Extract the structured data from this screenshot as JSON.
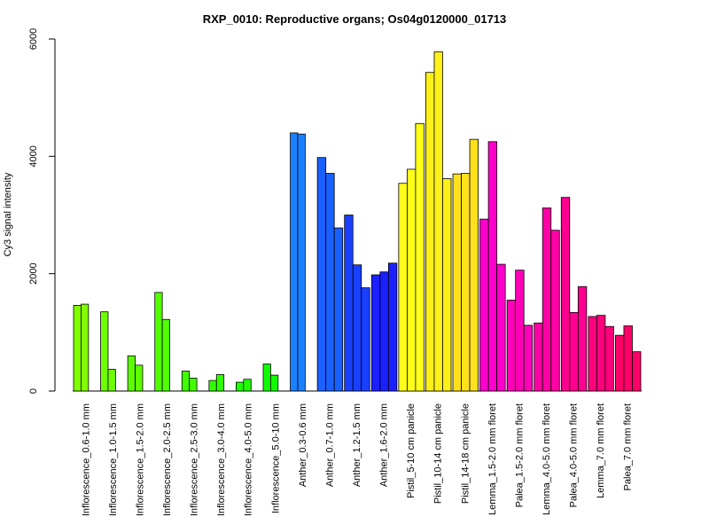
{
  "chart_data": {
    "type": "bar",
    "title": "RXP_0010: Reproductive organs; Os04g0120000_01713",
    "ylabel": "Cy3 signal intensity",
    "xlabel": "",
    "ylim": [
      0,
      6000
    ],
    "yticks": [
      0,
      2000,
      4000,
      6000
    ],
    "groups": [
      {
        "label": "Inflorescence_0.6-1.0 mm",
        "color": "#80FF00",
        "values": [
          1460,
          1480
        ]
      },
      {
        "label": "Inflorescence_1.0-1.5 mm",
        "color": "#70FF00",
        "values": [
          1350,
          370
        ]
      },
      {
        "label": "Inflorescence_1.5-2.0 mm",
        "color": "#60FF00",
        "values": [
          600,
          440
        ]
      },
      {
        "label": "Inflorescence_2.0-2.5 mm",
        "color": "#50FF00",
        "values": [
          1680,
          1220
        ]
      },
      {
        "label": "Inflorescence_2.5-3.0 mm",
        "color": "#40FF00",
        "values": [
          340,
          220
        ]
      },
      {
        "label": "Inflorescence_3.0-4.0 mm",
        "color": "#30FF00",
        "values": [
          180,
          280
        ]
      },
      {
        "label": "Inflorescence_4.0-5.0 mm",
        "color": "#20FF00",
        "values": [
          150,
          200
        ]
      },
      {
        "label": "Inflorescence_5.0-10 mm",
        "color": "#10FF00",
        "values": [
          460,
          270
        ]
      },
      {
        "label": "Anther_0.3-0.6 mm",
        "color": "#1A80FF",
        "values": [
          4400,
          4380
        ]
      },
      {
        "label": "Anther_0.7-1.0 mm",
        "color": "#1A60FF",
        "values": [
          3980,
          3710,
          2780
        ]
      },
      {
        "label": "Anther_1.2-1.5 mm",
        "color": "#1A40FF",
        "values": [
          3000,
          2150,
          1760
        ]
      },
      {
        "label": "Anther_1.6-2.0 mm",
        "color": "#1A20FF",
        "values": [
          1980,
          2030,
          2180
        ]
      },
      {
        "label": "Pistil_5-10 cm panicle",
        "color": "#FFFF1A",
        "values": [
          3540,
          3780,
          4560
        ]
      },
      {
        "label": "Pistil_10-14 cm panicle",
        "color": "#FFF01A",
        "values": [
          5430,
          5780,
          3620
        ]
      },
      {
        "label": "Pistil_14-18 cm panicle",
        "color": "#FFE01A",
        "values": [
          3700,
          3710,
          4290
        ]
      },
      {
        "label": "Lemma_1.5-2.0 mm floret",
        "color": "#FF00CC",
        "values": [
          2930,
          4250,
          2160
        ]
      },
      {
        "label": "Palea_1.5-2.0 mm floret",
        "color": "#FF00B8",
        "values": [
          1550,
          2060,
          1120
        ]
      },
      {
        "label": "Lemma_4.0-5.0 mm floret",
        "color": "#FF00A4",
        "values": [
          1160,
          3120,
          2740
        ]
      },
      {
        "label": "Palea_4.0-5.0 mm floret",
        "color": "#FF0090",
        "values": [
          3300,
          1340,
          1780
        ]
      },
      {
        "label": "Lemma_7.0 mm floret",
        "color": "#FF007C",
        "values": [
          1270,
          1290,
          1100
        ]
      },
      {
        "label": "Palea_7.0 mm floret",
        "color": "#FF0068",
        "values": [
          950,
          1110,
          670
        ]
      }
    ]
  }
}
